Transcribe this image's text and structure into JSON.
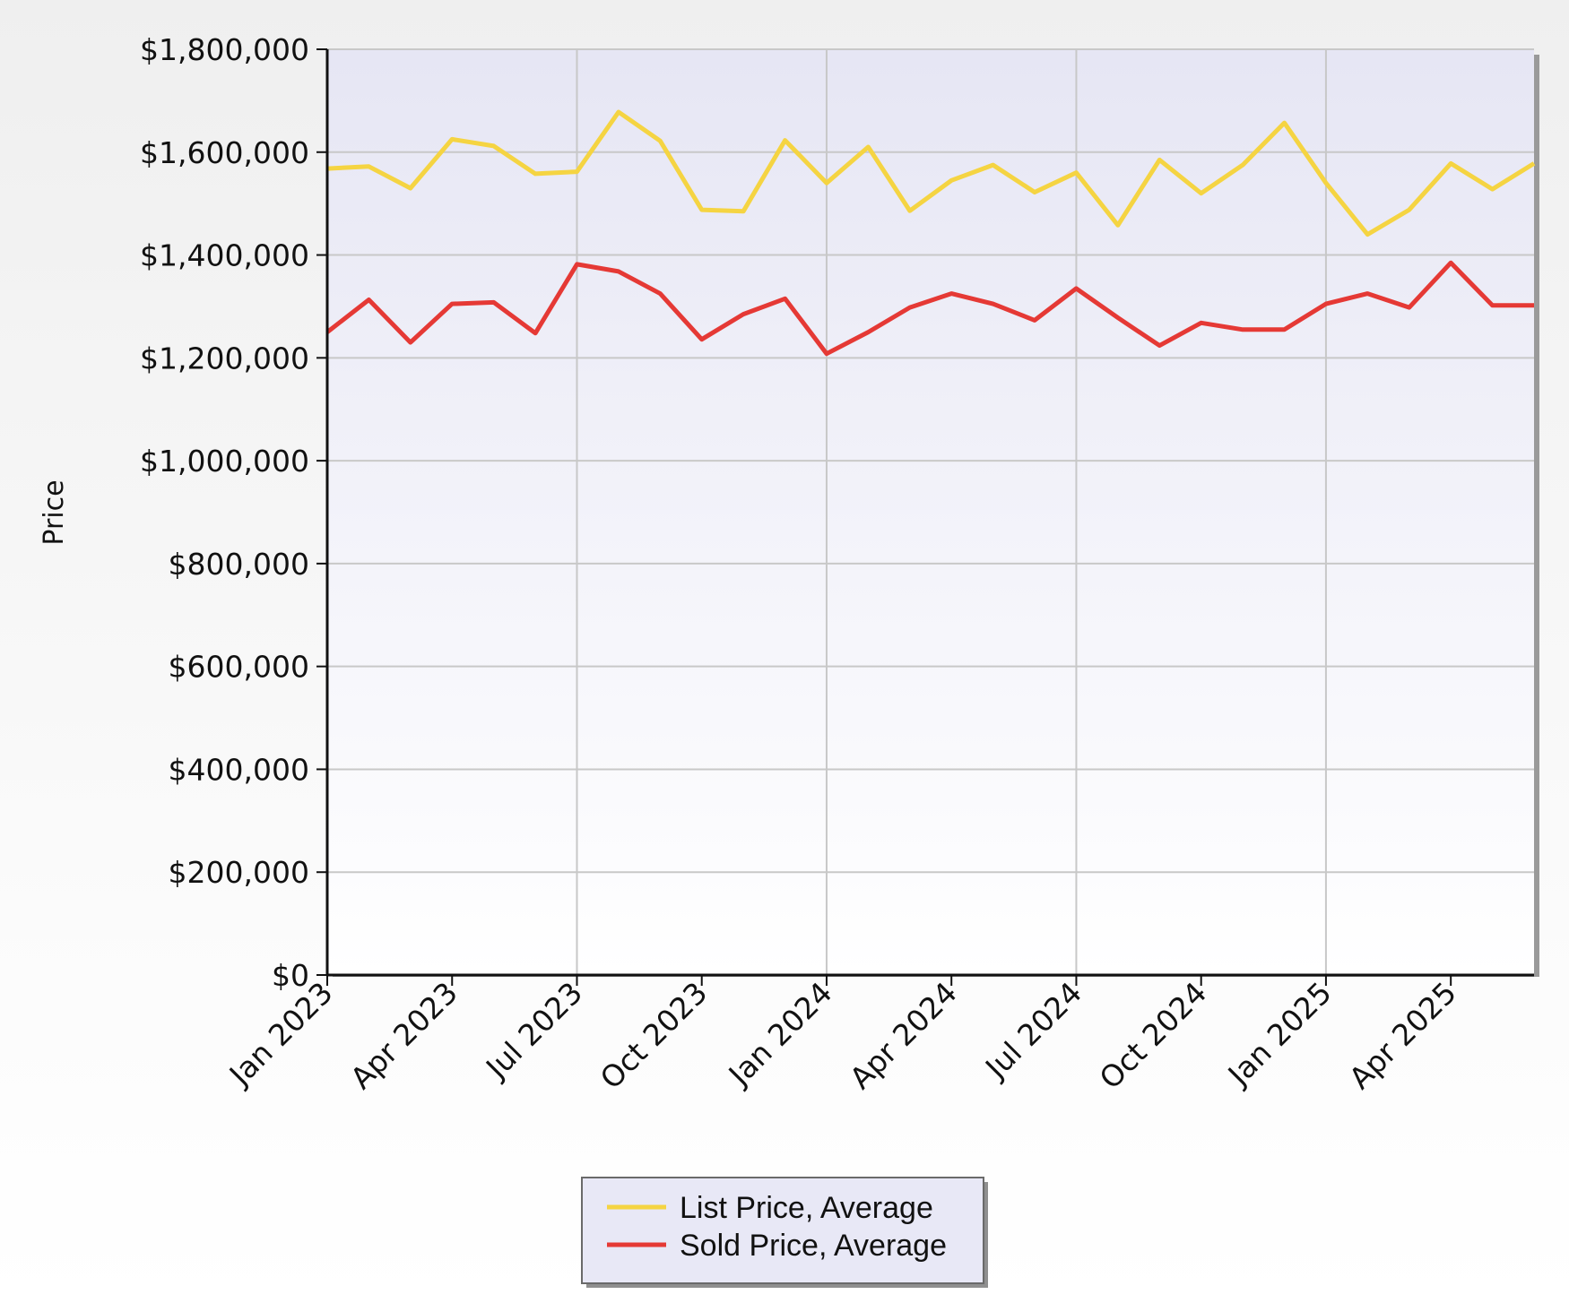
{
  "chart_data": {
    "type": "line",
    "xlabel": "",
    "ylabel": "Price",
    "ylim": [
      0,
      1800000
    ],
    "y_ticks": [
      "$0",
      "$200,000",
      "$400,000",
      "$600,000",
      "$800,000",
      "$1,000,000",
      "$1,200,000",
      "$1,400,000",
      "$1,600,000",
      "$1,800,000"
    ],
    "y_tick_values": [
      0,
      200000,
      400000,
      600000,
      800000,
      1000000,
      1200000,
      1400000,
      1600000,
      1800000
    ],
    "x_ticks": [
      "Jan 2023",
      "Apr 2023",
      "Jul 2023",
      "Oct 2023",
      "Jan 2024",
      "Apr 2024",
      "Jul 2024",
      "Oct 2024",
      "Jan 2025",
      "Apr 2025"
    ],
    "x_gridlines_at": [
      "Jul 2023",
      "Jan 2024",
      "Jul 2024",
      "Jan 2025"
    ],
    "x": [
      "2023-01",
      "2023-02",
      "2023-03",
      "2023-04",
      "2023-05",
      "2023-06",
      "2023-07",
      "2023-08",
      "2023-09",
      "2023-10",
      "2023-11",
      "2023-12",
      "2024-01",
      "2024-02",
      "2024-03",
      "2024-04",
      "2024-05",
      "2024-06",
      "2024-07",
      "2024-08",
      "2024-09",
      "2024-10",
      "2024-11",
      "2024-12",
      "2025-01",
      "2025-02",
      "2025-03",
      "2025-04",
      "2025-05",
      "2025-06"
    ],
    "series": [
      {
        "name": "List Price, Average",
        "color": "#f5d442",
        "values": [
          1568000,
          1572000,
          1530000,
          1625000,
          1612000,
          1558000,
          1562000,
          1678000,
          1622000,
          1488000,
          1485000,
          1623000,
          1540000,
          1610000,
          1486000,
          1545000,
          1575000,
          1522000,
          1560000,
          1458000,
          1585000,
          1520000,
          1575000,
          1657000,
          1540000,
          1440000,
          1488000,
          1578000,
          1528000,
          1578000
        ]
      },
      {
        "name": "Sold Price, Average",
        "color": "#e53935",
        "values": [
          1250000,
          1313000,
          1230000,
          1305000,
          1308000,
          1248000,
          1382000,
          1368000,
          1325000,
          1236000,
          1285000,
          1315000,
          1208000,
          1250000,
          1298000,
          1325000,
          1305000,
          1273000,
          1335000,
          1278000,
          1224000,
          1268000,
          1255000,
          1255000,
          1305000,
          1325000,
          1298000,
          1385000,
          1302000,
          1302000
        ]
      }
    ],
    "grid": true,
    "legend": "bottom-center"
  }
}
